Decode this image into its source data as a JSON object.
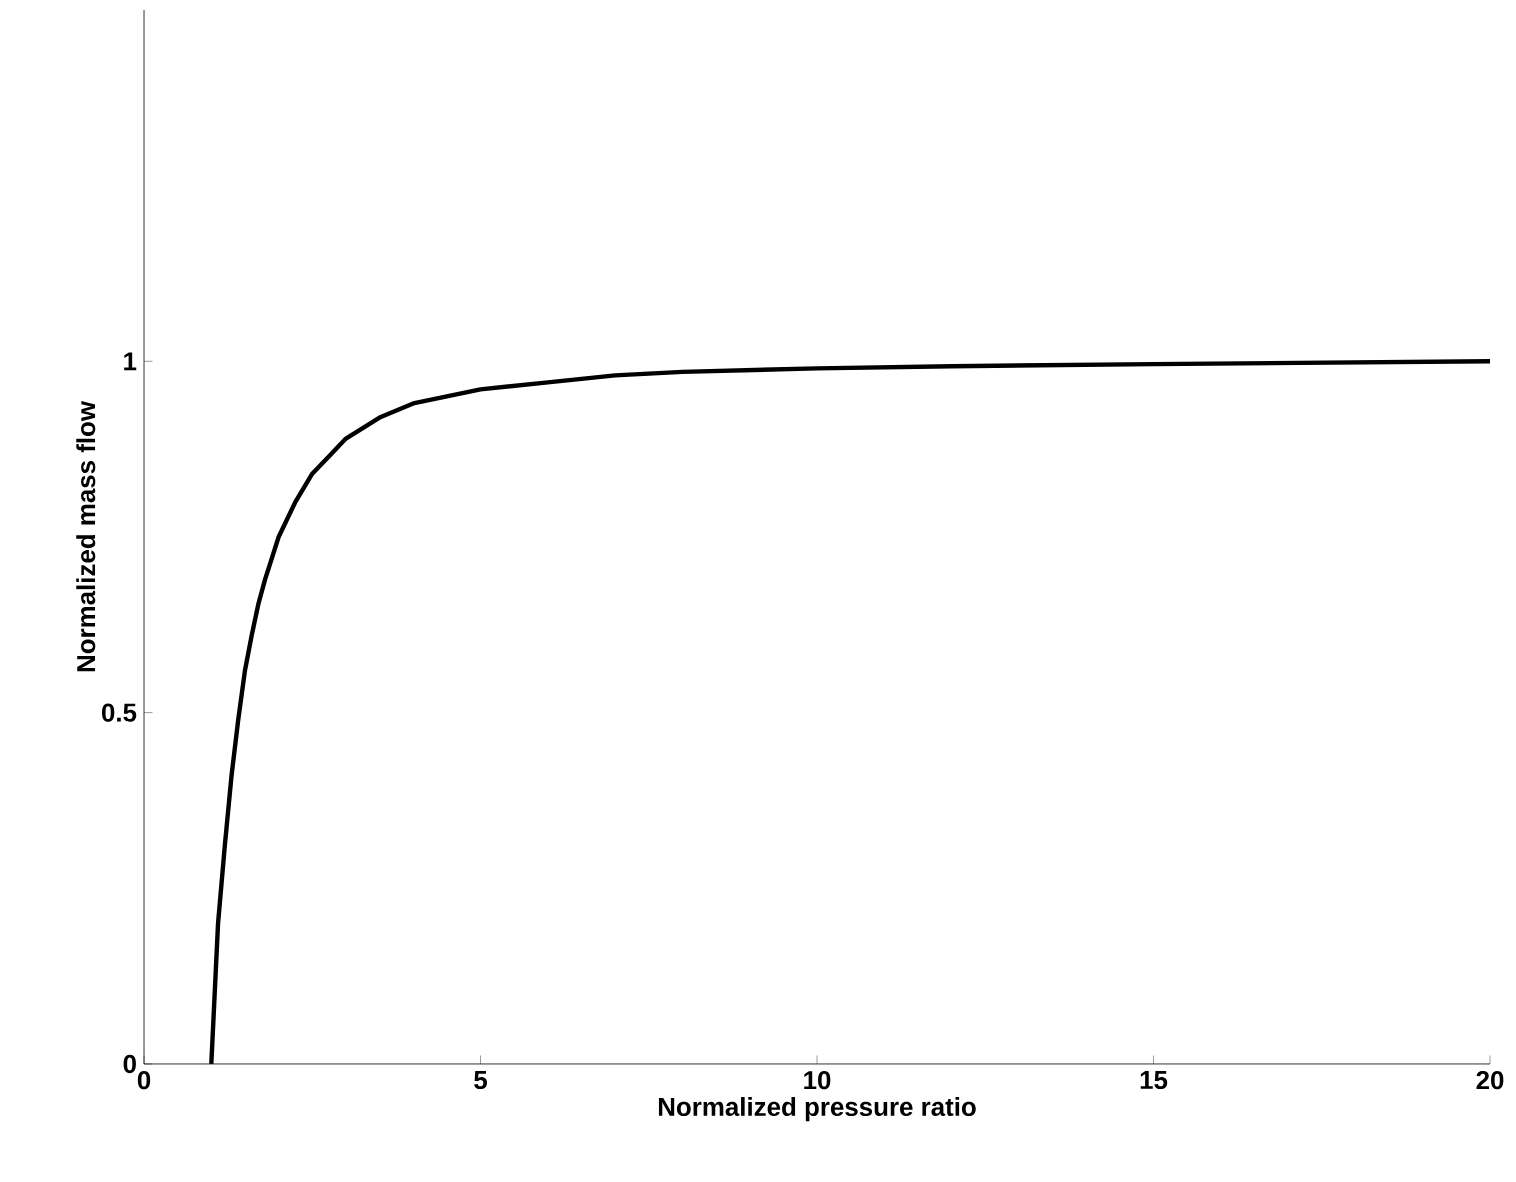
{
  "chart_data": {
    "type": "line",
    "xlabel": "Normalized pressure ratio",
    "ylabel": "Normalized mass flow",
    "x": [
      1,
      1.05,
      1.1,
      1.2,
      1.3,
      1.4,
      1.5,
      1.6,
      1.7,
      1.8,
      1.9,
      2,
      2.25,
      2.5,
      2.75,
      3,
      3.5,
      4,
      4.5,
      5,
      6,
      7,
      8,
      10,
      12,
      15,
      20
    ],
    "series": [
      {
        "color": "#000000",
        "values": [
          0,
          0.1,
          0.2,
          0.31,
          0.41,
          0.49,
          0.56,
          0.61,
          0.655,
          0.69,
          0.72,
          0.75,
          0.8,
          0.84,
          0.865,
          0.89,
          0.92,
          0.94,
          0.95,
          0.96,
          0.97,
          0.98,
          0.985,
          0.99,
          0.993,
          0.996,
          1.0
        ]
      }
    ],
    "xlim": [
      0,
      20
    ],
    "ylim": [
      0,
      1.5
    ],
    "xticks": [
      0,
      5,
      10,
      15,
      20
    ],
    "yticks": [
      0,
      0.5,
      1
    ],
    "grid": false,
    "marker": "none",
    "line_style": "solid"
  }
}
